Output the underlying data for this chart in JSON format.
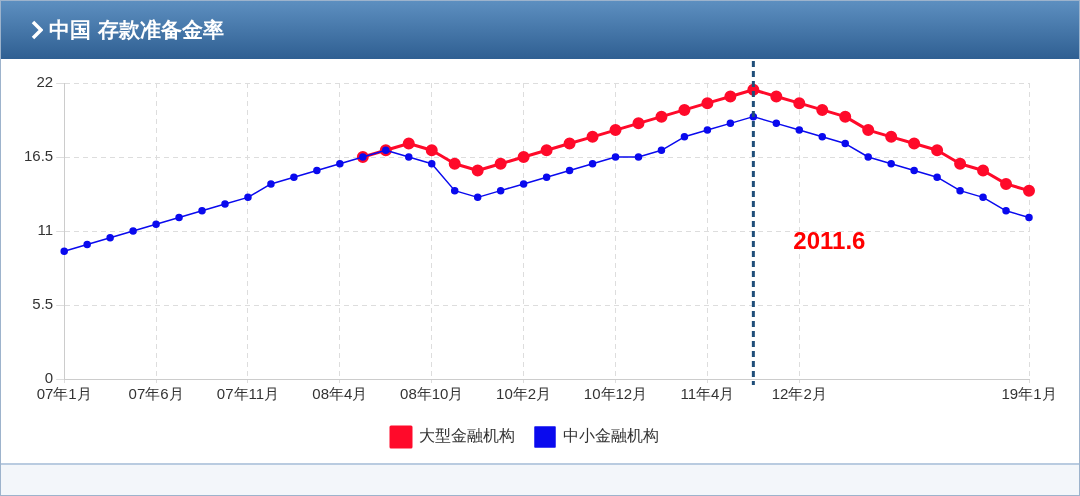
{
  "chart_data": {
    "type": "line",
    "title": "中国 存款准备金率",
    "categories": [
      "07年1月",
      null,
      null,
      null,
      "07年6月",
      null,
      null,
      null,
      "07年11月",
      null,
      null,
      null,
      "08年4月",
      null,
      null,
      null,
      "08年10月",
      null,
      null,
      null,
      "10年2月",
      null,
      null,
      null,
      "10年12月",
      null,
      null,
      null,
      "11年4月",
      null,
      null,
      null,
      "12年2月",
      null,
      null,
      null,
      null,
      null,
      null,
      null,
      null,
      null,
      "19年1月"
    ],
    "series": [
      {
        "name": "大型金融机构",
        "color": "#ff0a2a",
        "values": [
          null,
          null,
          null,
          null,
          null,
          null,
          null,
          null,
          null,
          null,
          null,
          null,
          null,
          16.5,
          17,
          17.5,
          17,
          16,
          15.5,
          16,
          16.5,
          17,
          17.5,
          18,
          18.5,
          19,
          19.5,
          20,
          20.5,
          21,
          21.5,
          21,
          20.5,
          20,
          19.5,
          18.5,
          18,
          17.5,
          17,
          16,
          15.5,
          14.5,
          14
        ]
      },
      {
        "name": "中小金融机构",
        "color": "#0a0aee",
        "values": [
          9.5,
          10,
          10.5,
          11,
          11.5,
          12,
          12.5,
          13,
          13.5,
          14.5,
          15,
          15.5,
          16,
          16.5,
          17,
          16.5,
          16,
          14,
          13.5,
          14,
          14.5,
          15,
          15.5,
          16,
          16.5,
          16.5,
          17,
          18,
          18.5,
          19,
          19.5,
          19,
          18.5,
          18,
          17.5,
          16.5,
          16,
          15.5,
          15,
          14,
          13.5,
          12.5,
          12
        ]
      }
    ],
    "ylim": [
      0,
      22
    ],
    "yticks": [
      0,
      5.5,
      11,
      16.5,
      22
    ],
    "grid": true,
    "legend": "bottom",
    "marker": "circle",
    "line_style": "solid",
    "annotations": [
      "2011.6"
    ]
  }
}
